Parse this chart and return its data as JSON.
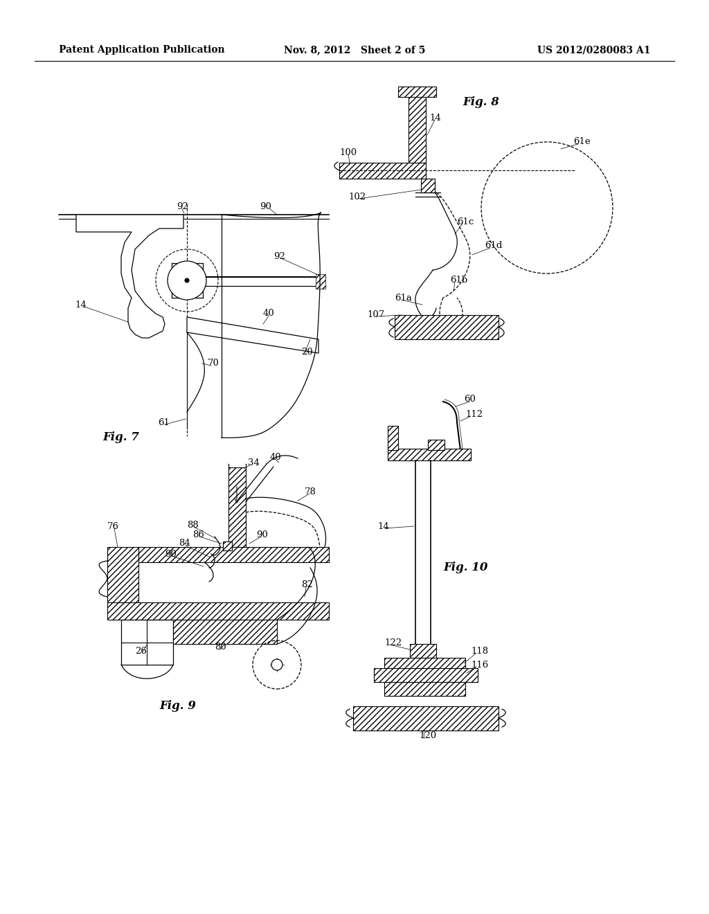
{
  "bg_color": "#ffffff",
  "header_left": "Patent Application Publication",
  "header_mid": "Nov. 8, 2012   Sheet 2 of 5",
  "header_right": "US 2012/0280083 A1",
  "fig7_label": "Fig. 7",
  "fig8_label": "Fig. 8",
  "fig9_label": "Fig. 9",
  "fig10_label": "Fig. 10",
  "line_color": "#000000",
  "label_fontsize": 9.5,
  "fig_label_fontsize": 12
}
